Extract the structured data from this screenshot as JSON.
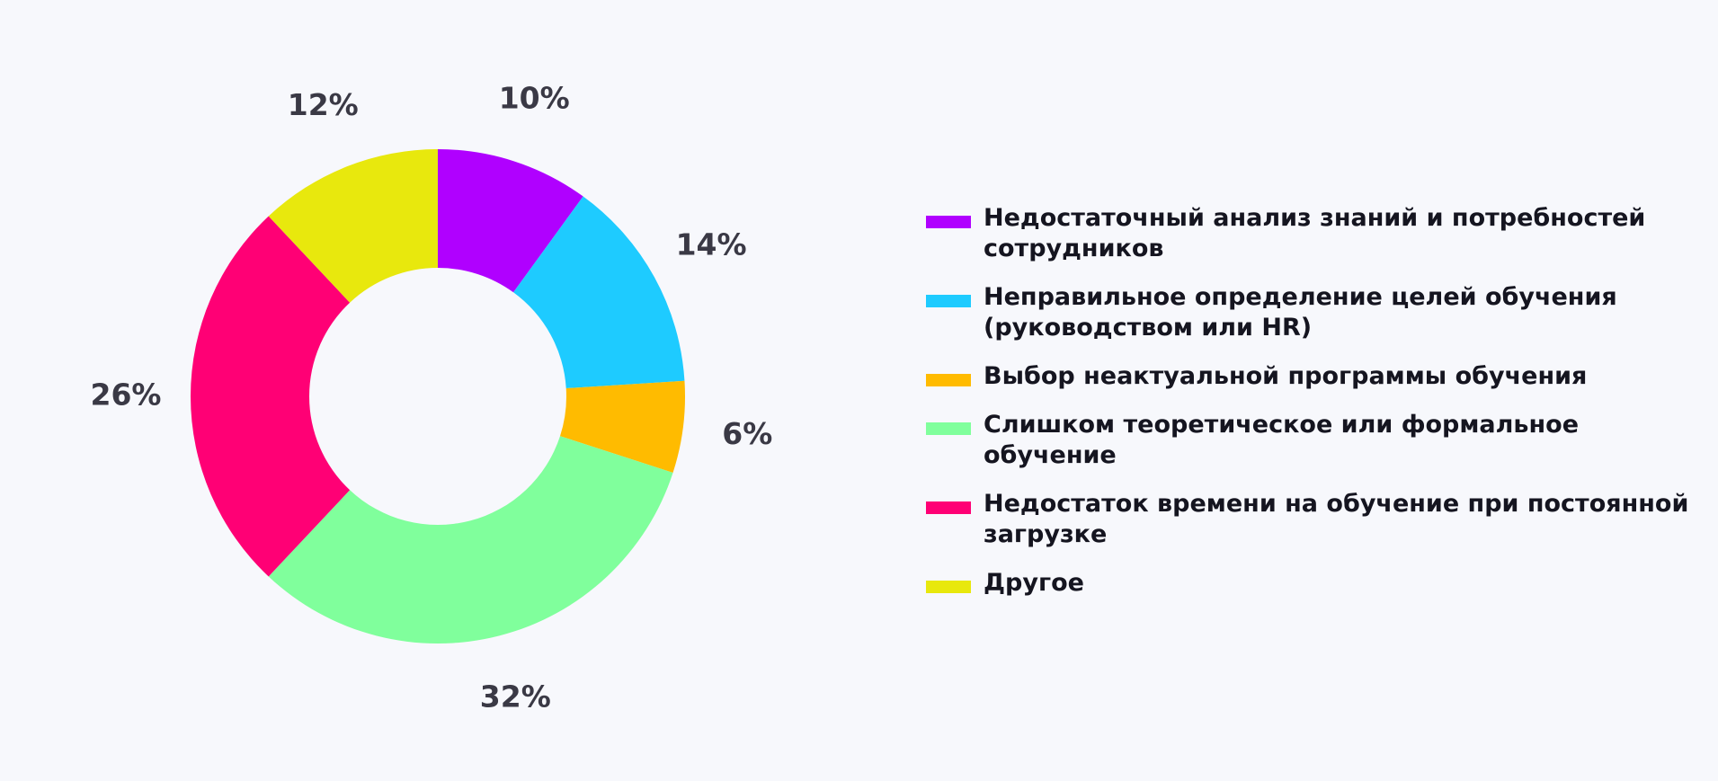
{
  "chart_data": {
    "type": "pie",
    "donut": true,
    "legend_position": "right",
    "slices": [
      {
        "label": "Недостаточный анализ знаний и потребностей сотрудников",
        "value": 10,
        "display": "10%",
        "color": "#b000ff"
      },
      {
        "label": "Неправильное определение целей обучения (руководством или HR)",
        "value": 14,
        "display": "14%",
        "color": "#1ecbff"
      },
      {
        "label": "Выбор неактуальной программы обучения",
        "value": 6,
        "display": "6%",
        "color": "#ffbb00"
      },
      {
        "label": "Слишком теоретическое или формальное обучение",
        "value": 32,
        "display": "32%",
        "color": "#80ff9c"
      },
      {
        "label": "Недостаток времени на обучение при постоянной загрузке",
        "value": 26,
        "display": "26%",
        "color": "#ff0075"
      },
      {
        "label": "Другое",
        "value": 12,
        "display": "12%",
        "color": "#e8e80d"
      }
    ]
  }
}
